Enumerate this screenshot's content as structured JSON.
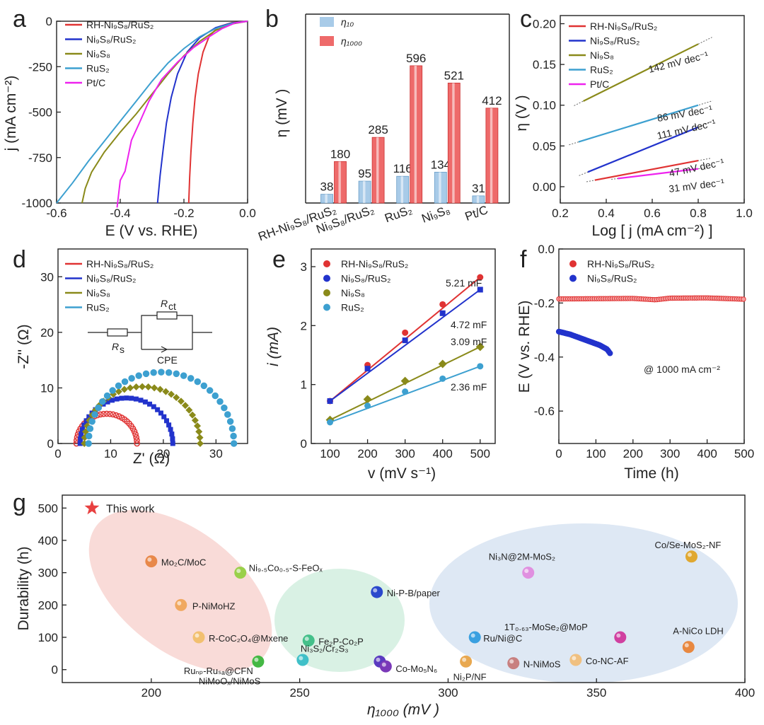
{
  "colors": {
    "rh": "#e03333",
    "ni9s8rus2": "#2233cc",
    "ni9s8": "#8a8a1a",
    "rus2": "#3da0d0",
    "ptc": "#ee22ee",
    "eta10": "#a8cbe8",
    "eta1000": "#ee6a6a"
  },
  "panel_letters": [
    "a",
    "b",
    "c",
    "d",
    "e",
    "f",
    "g"
  ],
  "chart_data": [
    {
      "panel": "a",
      "type": "line",
      "title": "",
      "xlabel": "E (V vs. RHE)",
      "ylabel": "j (mA cm⁻²)",
      "xlim": [
        -0.6,
        0.0
      ],
      "ylim": [
        -1000,
        0
      ],
      "xticks": [
        "-0.6",
        "-0.4",
        "-0.2",
        "0.0"
      ],
      "yticks": [
        "0",
        "-250",
        "-500",
        "-750",
        "-1000"
      ],
      "legend": [
        "RH-Ni₉S₈/RuS₂",
        "Ni₉S₈/RuS₂",
        "Ni₉S₈",
        "RuS₂",
        "Pt/C"
      ],
      "series": [
        {
          "name": "RH-Ni₉S₈/RuS₂",
          "color_key": "rh",
          "points": [
            [
              0,
              0
            ],
            [
              -0.05,
              -8
            ],
            [
              -0.09,
              -30
            ],
            [
              -0.12,
              -80
            ],
            [
              -0.14,
              -170
            ],
            [
              -0.155,
              -290
            ],
            [
              -0.165,
              -420
            ],
            [
              -0.172,
              -560
            ],
            [
              -0.178,
              -720
            ],
            [
              -0.182,
              -860
            ],
            [
              -0.185,
              -1000
            ]
          ]
        },
        {
          "name": "Ni₉S₈/RuS₂",
          "color_key": "ni9s8rus2",
          "points": [
            [
              0,
              0
            ],
            [
              -0.05,
              -10
            ],
            [
              -0.1,
              -35
            ],
            [
              -0.15,
              -90
            ],
            [
              -0.19,
              -170
            ],
            [
              -0.22,
              -290
            ],
            [
              -0.24,
              -420
            ],
            [
              -0.255,
              -560
            ],
            [
              -0.265,
              -700
            ],
            [
              -0.275,
              -850
            ],
            [
              -0.283,
              -1000
            ]
          ]
        },
        {
          "name": "Ni₉S₈",
          "color_key": "ni9s8",
          "points": [
            [
              0,
              0
            ],
            [
              -0.05,
              -15
            ],
            [
              -0.1,
              -50
            ],
            [
              -0.15,
              -110
            ],
            [
              -0.2,
              -190
            ],
            [
              -0.25,
              -290
            ],
            [
              -0.3,
              -400
            ],
            [
              -0.35,
              -510
            ],
            [
              -0.4,
              -610
            ],
            [
              -0.45,
              -720
            ],
            [
              -0.49,
              -830
            ],
            [
              -0.51,
              -920
            ],
            [
              -0.52,
              -1000
            ]
          ]
        },
        {
          "name": "RuS₂",
          "color_key": "rus2",
          "points": [
            [
              0,
              0
            ],
            [
              -0.05,
              -12
            ],
            [
              -0.1,
              -40
            ],
            [
              -0.15,
              -85
            ],
            [
              -0.2,
              -150
            ],
            [
              -0.25,
              -230
            ],
            [
              -0.3,
              -330
            ],
            [
              -0.35,
              -440
            ],
            [
              -0.4,
              -550
            ],
            [
              -0.45,
              -660
            ],
            [
              -0.5,
              -770
            ],
            [
              -0.55,
              -890
            ],
            [
              -0.6,
              -1000
            ]
          ]
        },
        {
          "name": "Pt/C",
          "color_key": "ptc",
          "points": [
            [
              0,
              0
            ],
            [
              -0.04,
              -10
            ],
            [
              -0.08,
              -40
            ],
            [
              -0.12,
              -85
            ],
            [
              -0.17,
              -145
            ],
            [
              -0.22,
              -225
            ],
            [
              -0.27,
              -320
            ],
            [
              -0.31,
              -440
            ],
            [
              -0.34,
              -560
            ],
            [
              -0.365,
              -680
            ],
            [
              -0.385,
              -800
            ],
            [
              -0.4,
              -900
            ],
            [
              -0.41,
              -1000
            ]
          ]
        }
      ]
    },
    {
      "panel": "b",
      "type": "bar",
      "xlabel": "",
      "ylabel": "η (mV )",
      "categories": [
        "RH-Ni₉S₈/RuS₂",
        "Ni₉S₈/RuS₂",
        "RuS₂",
        "Ni₉S₈",
        "Pt/C"
      ],
      "legend": [
        "η₁₀",
        "η₁₀₀₀"
      ],
      "ylim": [
        0,
        820
      ],
      "series": [
        {
          "name": "η₁₀",
          "color_key": "eta10",
          "values": [
            38,
            95,
            116,
            134,
            31
          ],
          "labels": [
            "38",
            "95",
            "116",
            "134",
            "31"
          ]
        },
        {
          "name": "η₁₀₀₀",
          "color_key": "eta1000",
          "values": [
            180,
            285,
            596,
            521,
            412
          ],
          "labels": [
            "180",
            "285",
            "596",
            "521",
            "412"
          ]
        }
      ]
    },
    {
      "panel": "c",
      "type": "line",
      "xlabel": "Log [ j (mA cm⁻²) ]",
      "ylabel": "η (V )",
      "xlim": [
        0.2,
        1.0
      ],
      "ylim": [
        -0.02,
        0.21
      ],
      "xticks": [
        "0.2",
        "0.4",
        "0.6",
        "0.8",
        "1.0"
      ],
      "yticks": [
        "0.00",
        "0.05",
        "0.10",
        "0.15",
        "0.20"
      ],
      "legend": [
        "RH-Ni₉S₈/RuS₂",
        "Ni₉S₈/RuS₂",
        "Ni₉S₈",
        "RuS₂",
        "Pt/C"
      ],
      "annotations": [
        "142 mV dec⁻¹",
        "86 mV dec⁻¹",
        "111 mV dec⁻¹",
        "47 mV dec⁻¹",
        "31 mV dec⁻¹"
      ],
      "series": [
        {
          "name": "RH-Ni₉S₈/RuS₂",
          "color_key": "rh",
          "slope_label": "47 mV dec⁻¹",
          "points": [
            [
              0.35,
              0.008
            ],
            [
              0.8,
              0.032
            ]
          ]
        },
        {
          "name": "Ni₉S₈/RuS₂",
          "color_key": "ni9s8rus2",
          "slope_label": "111 mV dec⁻¹",
          "points": [
            [
              0.32,
              0.018
            ],
            [
              0.8,
              0.073
            ]
          ]
        },
        {
          "name": "Ni₉S₈",
          "color_key": "ni9s8",
          "slope_label": "142 mV dec⁻¹",
          "points": [
            [
              0.3,
              0.105
            ],
            [
              0.8,
              0.175
            ]
          ]
        },
        {
          "name": "RuS₂",
          "color_key": "rus2",
          "slope_label": "86 mV dec⁻¹",
          "points": [
            [
              0.28,
              0.055
            ],
            [
              0.8,
              0.1
            ]
          ]
        },
        {
          "name": "Pt/C",
          "color_key": "ptc",
          "slope_label": "31 mV dec⁻¹",
          "points": [
            [
              0.45,
              0.01
            ],
            [
              0.8,
              0.022
            ]
          ]
        }
      ]
    },
    {
      "panel": "d",
      "type": "scatter",
      "xlabel": "Z' (Ω)",
      "ylabel": "-Z'' (Ω)",
      "xlim": [
        0,
        36
      ],
      "ylim": [
        0,
        35
      ],
      "xticks": [
        "0",
        "10",
        "20",
        "30"
      ],
      "yticks": [
        "0",
        "10",
        "20",
        "30"
      ],
      "legend": [
        "RH-Ni₉S₈/RuS₂",
        "Ni₉S₈/RuS₂",
        "Ni₉S₈",
        "RuS₂"
      ],
      "circuit_labels": {
        "rct": "R",
        "rct_sub": "ct",
        "rs": "R",
        "rs_sub": "s",
        "cpe": "CPE"
      },
      "series": [
        {
          "name": "RH-Ni₉S₈/RuS₂",
          "color_key": "rh",
          "rs": 3.5,
          "rct": 11.5,
          "arc_end_deg": 190
        },
        {
          "name": "Ni₉S₈/RuS₂",
          "color_key": "ni9s8rus2",
          "rs": 4.2,
          "rct": 17.6,
          "arc_end_deg": 180
        },
        {
          "name": "Ni₉S₈",
          "color_key": "ni9s8",
          "rs": 5.0,
          "rct": 22.0,
          "arc_end_deg": 182
        },
        {
          "name": "RuS₂",
          "color_key": "rus2",
          "rs": 5.8,
          "rct": 27.6,
          "arc_end_deg": 182
        }
      ]
    },
    {
      "panel": "e",
      "type": "scatter",
      "xlabel": "v (mV s⁻¹)",
      "ylabel": "i (mA)",
      "xlim": [
        50,
        540
      ],
      "ylim": [
        0,
        3.3
      ],
      "xticks": [
        "100",
        "200",
        "300",
        "400",
        "500"
      ],
      "yticks": [
        "0",
        "1",
        "2",
        "3"
      ],
      "legend": [
        "RH-Ni₉S₈/RuS₂",
        "Ni₉S₈/RuS₂",
        "Ni₉S₈",
        "RuS₂"
      ],
      "x": [
        100,
        200,
        300,
        400,
        500
      ],
      "series": [
        {
          "name": "RH-Ni₉S₈/RuS₂",
          "color_key": "rh",
          "marker": "circle",
          "label": "5.21 mF",
          "values": [
            0.72,
            1.33,
            1.88,
            2.36,
            2.82
          ]
        },
        {
          "name": "Ni₉S₈/RuS₂",
          "color_key": "ni9s8rus2",
          "marker": "square",
          "label": "4.72 mF",
          "values": [
            0.72,
            1.27,
            1.75,
            2.21,
            2.61
          ]
        },
        {
          "name": "Ni₉S₈",
          "color_key": "ni9s8",
          "marker": "diamond",
          "label": "3.09 mF",
          "values": [
            0.4,
            0.75,
            1.06,
            1.35,
            1.64
          ]
        },
        {
          "name": "RuS₂",
          "color_key": "rus2",
          "marker": "hexagon",
          "label": "2.36 mF",
          "values": [
            0.36,
            0.64,
            0.88,
            1.1,
            1.31
          ]
        }
      ]
    },
    {
      "panel": "f",
      "type": "scatter",
      "xlabel": "Time (h)",
      "ylabel": "E (V vs. RHE)",
      "xlim": [
        0,
        500
      ],
      "ylim": [
        -0.72,
        0.0
      ],
      "xticks": [
        "0",
        "100",
        "200",
        "300",
        "400",
        "500"
      ],
      "yticks": [
        "0.0",
        "-0.2",
        "-0.4",
        "-0.6"
      ],
      "legend": [
        "RH-Ni₉S₈/RuS₂",
        "Ni₉S₈/RuS₂"
      ],
      "annotation": "@ 1000 mA cm⁻²",
      "series": [
        {
          "name": "RH-Ni₉S₈/RuS₂",
          "color_key": "rh",
          "t_range": [
            0,
            500
          ],
          "points": [
            [
              0,
              -0.185
            ],
            [
              100,
              -0.184
            ],
            [
              200,
              -0.183
            ],
            [
              260,
              -0.188
            ],
            [
              300,
              -0.182
            ],
            [
              400,
              -0.181
            ],
            [
              500,
              -0.186
            ]
          ]
        },
        {
          "name": "Ni₉S₈/RuS₂",
          "color_key": "ni9s8rus2",
          "t_range": [
            0,
            138
          ],
          "points": [
            [
              0,
              -0.3
            ],
            [
              30,
              -0.31
            ],
            [
              60,
              -0.325
            ],
            [
              90,
              -0.34
            ],
            [
              110,
              -0.35
            ],
            [
              130,
              -0.365
            ],
            [
              138,
              -0.38
            ]
          ]
        }
      ]
    },
    {
      "panel": "g",
      "type": "scatter",
      "xlabel": "η₁₀₀₀ (mV )",
      "ylabel": "Durability (h)",
      "xlim": [
        170,
        400
      ],
      "ylim": [
        -40,
        540
      ],
      "xticks": [
        "200",
        "250",
        "300",
        "350",
        "400"
      ],
      "yticks": [
        "0",
        "100",
        "200",
        "300",
        "400",
        "500"
      ],
      "points": [
        {
          "label": "This work",
          "x": 180,
          "y": 500,
          "color": "#e84040",
          "marker": "star"
        },
        {
          "label": "Mo₂C/MoC",
          "x": 200,
          "y": 335,
          "color": "#e8884a"
        },
        {
          "label": "P-NiMoHZ",
          "x": 210,
          "y": 200,
          "color": "#f0a860"
        },
        {
          "label": "R-CoC₂O₄@Mxene",
          "x": 216,
          "y": 100,
          "color": "#f2c070"
        },
        {
          "label": "NiMoOₓ/NiMoS",
          "x": 236,
          "y": 25,
          "color": "#44b844"
        },
        {
          "label": "Ni₉.₅Co₀.₅-S-FeOₓ",
          "x": 230,
          "y": 300,
          "color": "#9ad04a"
        },
        {
          "label": "Fe₂P-Co₂P",
          "x": 253,
          "y": 90,
          "color": "#44c08a"
        },
        {
          "label": "Ruₙₚ-Ruₛₐ@CFN",
          "x": 251,
          "y": 30,
          "color": "#40c0c8"
        },
        {
          "label": "Ni-P-B/paper",
          "x": 276,
          "y": 240,
          "color": "#2a48cc"
        },
        {
          "label": "Ni₃S₂/Cr₂S₃",
          "x": 277,
          "y": 25,
          "color": "#5a3ac0"
        },
        {
          "label": "Co-Mo₅N₆",
          "x": 279,
          "y": 10,
          "color": "#7a38b8"
        },
        {
          "label": "Ni₂P/NF",
          "x": 306,
          "y": 25,
          "color": "#e8a850"
        },
        {
          "label": "Ru/Ni@C",
          "x": 309,
          "y": 100,
          "color": "#3aa0e0"
        },
        {
          "label": "N-NiMoS",
          "x": 322,
          "y": 20,
          "color": "#c88080"
        },
        {
          "label": "Ni₃N@2M-MoS₂",
          "x": 327,
          "y": 300,
          "color": "#e090e0"
        },
        {
          "label": "Co-NC-AF",
          "x": 343,
          "y": 30,
          "color": "#f0c080"
        },
        {
          "label": "1T₀.₆₃-MoSe₂@MoP",
          "x": 358,
          "y": 100,
          "color": "#d040a0"
        },
        {
          "label": "A-NiCo LDH",
          "x": 381,
          "y": 70,
          "color": "#e88840"
        },
        {
          "label": "Co/Se-MoS₂-NF",
          "x": 382,
          "y": 350,
          "color": "#e0a830"
        }
      ]
    }
  ]
}
